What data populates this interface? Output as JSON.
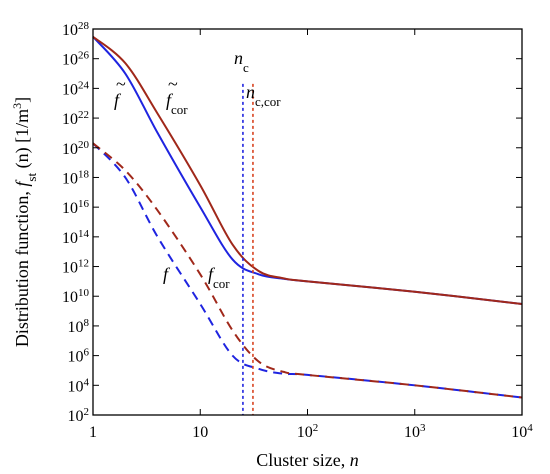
{
  "chart_data": {
    "type": "line",
    "title": "",
    "xlabel": {
      "main": "Cluster size, ",
      "var": "n"
    },
    "ylabel": {
      "main": "Distribution function, ",
      "f": "f",
      "sub": "st",
      "arg": " (n) [1/m",
      "exp": "3",
      "close": "]"
    },
    "xscale": "log",
    "yscale": "log",
    "xlim": [
      1,
      10000
    ],
    "ylim": [
      100.0,
      1e+28
    ],
    "grid": false,
    "xticks": [
      {
        "value": 1,
        "base": "1",
        "exp": ""
      },
      {
        "value": 10,
        "base": "10",
        "exp": ""
      },
      {
        "value": 100,
        "base": "10",
        "exp": "2"
      },
      {
        "value": 1000,
        "base": "10",
        "exp": "3"
      },
      {
        "value": 10000,
        "base": "10",
        "exp": "4"
      }
    ],
    "yticks": [
      {
        "value": 100.0,
        "base": "10",
        "exp": "2"
      },
      {
        "value": 10000.0,
        "base": "10",
        "exp": "4"
      },
      {
        "value": 1000000.0,
        "base": "10",
        "exp": "6"
      },
      {
        "value": 100000000.0,
        "base": "10",
        "exp": "8"
      },
      {
        "value": 10000000000.0,
        "base": "10",
        "exp": "10"
      },
      {
        "value": 1000000000000.0,
        "base": "10",
        "exp": "12"
      },
      {
        "value": 100000000000000.0,
        "base": "10",
        "exp": "14"
      },
      {
        "value": 1e+16,
        "base": "10",
        "exp": "16"
      },
      {
        "value": 1e+18,
        "base": "10",
        "exp": "18"
      },
      {
        "value": 1e+20,
        "base": "10",
        "exp": "20"
      },
      {
        "value": 1e+22,
        "base": "10",
        "exp": "22"
      },
      {
        "value": 1e+24,
        "base": "10",
        "exp": "24"
      },
      {
        "value": 1e+26,
        "base": "10",
        "exp": "26"
      },
      {
        "value": 1e+28,
        "base": "10",
        "exp": "28"
      }
    ],
    "series": [
      {
        "key": "f_tilde",
        "color": "#1f24e0",
        "dash": false,
        "points": [
          [
            1,
            3e+27
          ],
          [
            2,
            1e+25
          ],
          [
            4,
            1e+21
          ],
          [
            10,
            1e+16
          ],
          [
            20,
            3000000000000.0
          ],
          [
            35,
            300000000000.0
          ],
          [
            60,
            150000000000.0
          ],
          [
            100,
            100000000000.0
          ],
          [
            1000,
            20000000000.0
          ],
          [
            10000,
            3000000000.0
          ]
        ]
      },
      {
        "key": "f_tilde_cor",
        "color": "#a0281a",
        "dash": false,
        "points": [
          [
            1,
            3e+27
          ],
          [
            2,
            5e+25
          ],
          [
            4,
            2e+22
          ],
          [
            10,
            3e+17
          ],
          [
            20,
            30000000000000.0
          ],
          [
            35,
            500000000000.0
          ],
          [
            60,
            160000000000.0
          ],
          [
            100,
            100000000000.0
          ],
          [
            1000,
            20000000000.0
          ],
          [
            10000,
            3000000000.0
          ]
        ]
      },
      {
        "key": "f",
        "color": "#1f24e0",
        "dash": true,
        "points": [
          [
            1,
            2e+20
          ],
          [
            2,
            1e+18
          ],
          [
            4,
            100000000000000.0
          ],
          [
            10,
            3000000000.0
          ],
          [
            20,
            1000000.0
          ],
          [
            35,
            130000.0
          ],
          [
            60,
            60000.0
          ],
          [
            100,
            50000.0
          ],
          [
            1000,
            10000.0
          ],
          [
            10000,
            1500.0
          ]
        ]
      },
      {
        "key": "f_cor",
        "color": "#a0281a",
        "dash": true,
        "points": [
          [
            1,
            2e+20
          ],
          [
            2,
            3e+18
          ],
          [
            4,
            6000000000000000.0
          ],
          [
            10,
            300000000000.0
          ],
          [
            20,
            50000000.0
          ],
          [
            35,
            400000.0
          ],
          [
            60,
            80000.0
          ],
          [
            100,
            50000.0
          ],
          [
            1000,
            10000.0
          ],
          [
            10000,
            1500.0
          ]
        ]
      }
    ],
    "markers": [
      {
        "key": "n_c",
        "x": 25,
        "color": "#1f24e0",
        "label_main": "n",
        "label_sub": "c"
      },
      {
        "key": "n_c_cor",
        "x": 31,
        "color": "#d9431f",
        "label_main": "n",
        "label_sub": "c,cor"
      }
    ],
    "annotations": [
      {
        "key": "f_tilde",
        "main": "f",
        "sub": "",
        "tilde": true
      },
      {
        "key": "f_tilde_cor",
        "main": "f",
        "sub": "cor",
        "tilde": true
      },
      {
        "key": "f",
        "main": "f",
        "sub": "",
        "tilde": false
      },
      {
        "key": "f_cor",
        "main": "f",
        "sub": "cor",
        "tilde": false
      }
    ]
  }
}
